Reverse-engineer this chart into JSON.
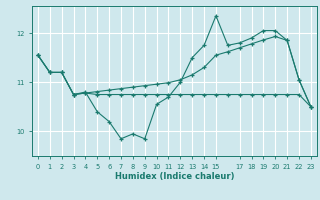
{
  "xlabel": "Humidex (Indice chaleur)",
  "bg_color": "#cfe8ed",
  "grid_color": "#ffffff",
  "line_color": "#1a7a6e",
  "x_values": [
    0,
    1,
    2,
    3,
    4,
    5,
    6,
    7,
    8,
    9,
    10,
    11,
    12,
    13,
    14,
    15,
    16,
    17,
    18,
    19,
    20,
    21,
    22,
    23
  ],
  "series1": [
    11.55,
    11.2,
    11.2,
    10.75,
    10.8,
    10.4,
    10.2,
    9.85,
    9.95,
    9.85,
    10.55,
    10.7,
    11.0,
    11.5,
    11.75,
    12.35,
    11.75,
    11.8,
    11.9,
    12.05,
    12.05,
    11.85,
    11.05,
    10.5
  ],
  "series2": [
    11.55,
    11.2,
    11.2,
    10.75,
    10.78,
    10.81,
    10.84,
    10.87,
    10.9,
    10.93,
    10.96,
    10.99,
    11.05,
    11.15,
    11.3,
    11.55,
    11.62,
    11.7,
    11.78,
    11.86,
    11.93,
    11.85,
    11.05,
    10.5
  ],
  "series3": [
    11.55,
    11.2,
    11.2,
    10.75,
    10.78,
    10.75,
    10.75,
    10.75,
    10.75,
    10.75,
    10.75,
    10.75,
    10.75,
    10.75,
    10.75,
    10.75,
    10.75,
    10.75,
    10.75,
    10.75,
    10.75,
    10.75,
    10.75,
    10.5
  ],
  "ylim": [
    9.5,
    12.55
  ],
  "yticks": [
    10,
    11,
    12
  ],
  "xlim": [
    -0.5,
    23.5
  ],
  "xticks": [
    0,
    1,
    2,
    3,
    4,
    5,
    6,
    7,
    8,
    9,
    10,
    11,
    12,
    13,
    14,
    15,
    17,
    18,
    19,
    20,
    21,
    22,
    23
  ],
  "xtick_labels": [
    "0",
    "1",
    "2",
    "3",
    "4",
    "5",
    "6",
    "7",
    "8",
    "9",
    "10",
    "11",
    "12",
    "13",
    "14",
    "15",
    "17",
    "18",
    "19",
    "20",
    "21",
    "22",
    "23"
  ],
  "figsize": [
    3.2,
    2.0
  ],
  "dpi": 100
}
